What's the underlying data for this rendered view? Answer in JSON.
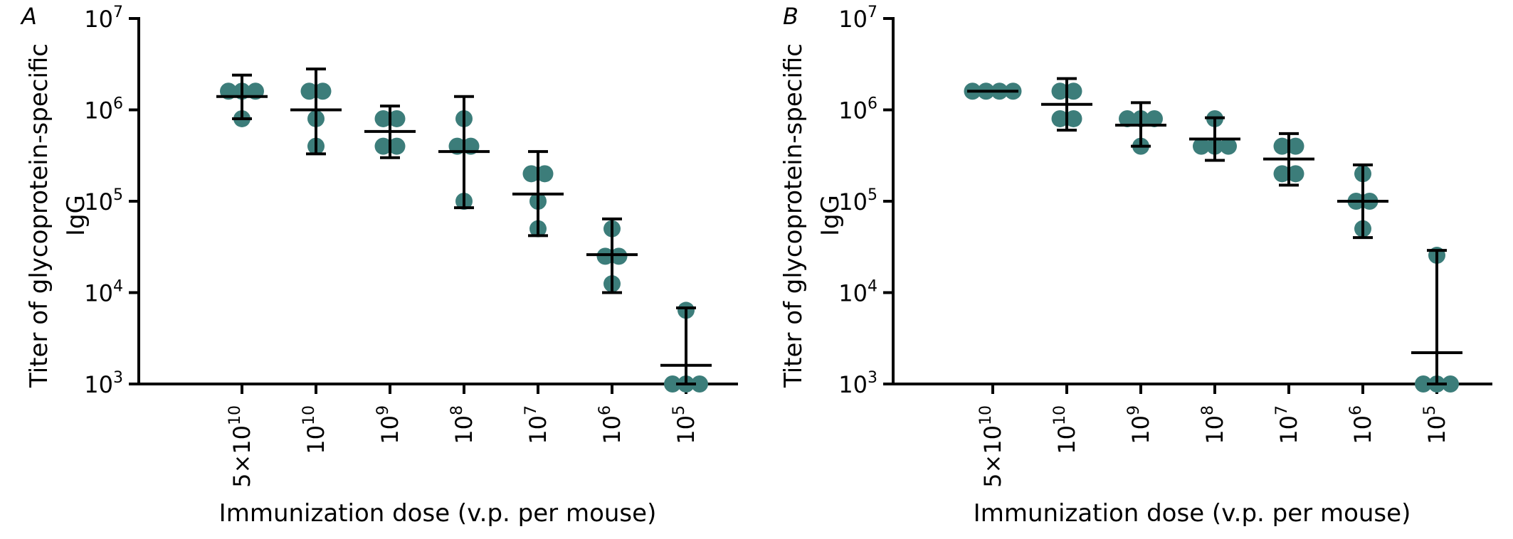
{
  "chart_data": [
    {
      "panel_label": "A",
      "type": "scatter",
      "x_scale": "category",
      "y_scale": "log",
      "ylim": [
        1000,
        10000000
      ],
      "y_ticks": [
        {
          "value": 1000,
          "base": "10",
          "exp": "3"
        },
        {
          "value": 10000,
          "base": "10",
          "exp": "4"
        },
        {
          "value": 100000,
          "base": "10",
          "exp": "5"
        },
        {
          "value": 1000000,
          "base": "10",
          "exp": "6"
        },
        {
          "value": 10000000,
          "base": "10",
          "exp": "7"
        }
      ],
      "xlabel": "Immunization dose (v.p. per mouse)",
      "ylabel_lines": [
        "Titer of glycoprotein-specific",
        "IgG"
      ],
      "categories": [
        {
          "base": "5×10",
          "exp": "10"
        },
        {
          "base": "10",
          "exp": "10"
        },
        {
          "base": "10",
          "exp": "9"
        },
        {
          "base": "10",
          "exp": "8"
        },
        {
          "base": "10",
          "exp": "7"
        },
        {
          "base": "10",
          "exp": "6"
        },
        {
          "base": "10",
          "exp": "5"
        }
      ],
      "groups": [
        {
          "points": [
            1600000,
            1600000,
            1600000,
            800000
          ],
          "center": 1400000,
          "err_low": 800000,
          "err_high": 2400000
        },
        {
          "points": [
            1600000,
            1600000,
            800000,
            400000
          ],
          "center": 1000000,
          "err_low": 330000,
          "err_high": 2800000
        },
        {
          "points": [
            800000,
            800000,
            400000,
            400000
          ],
          "center": 580000,
          "err_low": 300000,
          "err_high": 1100000
        },
        {
          "points": [
            800000,
            400000,
            400000,
            100000
          ],
          "center": 350000,
          "err_low": 85000,
          "err_high": 1400000
        },
        {
          "points": [
            200000,
            200000,
            100000,
            50000
          ],
          "center": 120000,
          "err_low": 42000,
          "err_high": 350000
        },
        {
          "points": [
            50000,
            25000,
            25000,
            12500
          ],
          "center": 26000,
          "err_low": 10000,
          "err_high": 64000
        },
        {
          "points": [
            6400,
            1000,
            1000,
            1000
          ],
          "center": 1600,
          "err_low": 1000,
          "err_high": 6800
        }
      ]
    },
    {
      "panel_label": "B",
      "type": "scatter",
      "x_scale": "category",
      "y_scale": "log",
      "ylim": [
        1000,
        10000000
      ],
      "y_ticks": [
        {
          "value": 1000,
          "base": "10",
          "exp": "3"
        },
        {
          "value": 10000,
          "base": "10",
          "exp": "4"
        },
        {
          "value": 100000,
          "base": "10",
          "exp": "5"
        },
        {
          "value": 1000000,
          "base": "10",
          "exp": "6"
        },
        {
          "value": 10000000,
          "base": "10",
          "exp": "7"
        }
      ],
      "xlabel": "Immunization dose (v.p. per mouse)",
      "ylabel_lines": [
        "Titer of glycoprotein-specific",
        "IgG"
      ],
      "categories": [
        {
          "base": "5×10",
          "exp": "10"
        },
        {
          "base": "10",
          "exp": "10"
        },
        {
          "base": "10",
          "exp": "9"
        },
        {
          "base": "10",
          "exp": "8"
        },
        {
          "base": "10",
          "exp": "7"
        },
        {
          "base": "10",
          "exp": "6"
        },
        {
          "base": "10",
          "exp": "5"
        }
      ],
      "groups": [
        {
          "points": [
            1600000,
            1600000,
            1600000,
            1600000
          ],
          "center": 1600000,
          "err_low": 1600000,
          "err_high": 1600000
        },
        {
          "points": [
            1600000,
            1600000,
            800000,
            800000
          ],
          "center": 1150000,
          "err_low": 600000,
          "err_high": 2200000
        },
        {
          "points": [
            800000,
            800000,
            800000,
            400000
          ],
          "center": 680000,
          "err_low": 400000,
          "err_high": 1200000
        },
        {
          "points": [
            800000,
            400000,
            400000,
            400000
          ],
          "center": 480000,
          "err_low": 280000,
          "err_high": 820000
        },
        {
          "points": [
            400000,
            400000,
            200000,
            200000
          ],
          "center": 290000,
          "err_low": 150000,
          "err_high": 550000
        },
        {
          "points": [
            200000,
            100000,
            100000,
            50000
          ],
          "center": 100000,
          "err_low": 40000,
          "err_high": 250000
        },
        {
          "points": [
            25600,
            1000,
            1000,
            1000
          ],
          "center": 2200,
          "err_low": 1000,
          "err_high": 29000
        }
      ]
    }
  ]
}
